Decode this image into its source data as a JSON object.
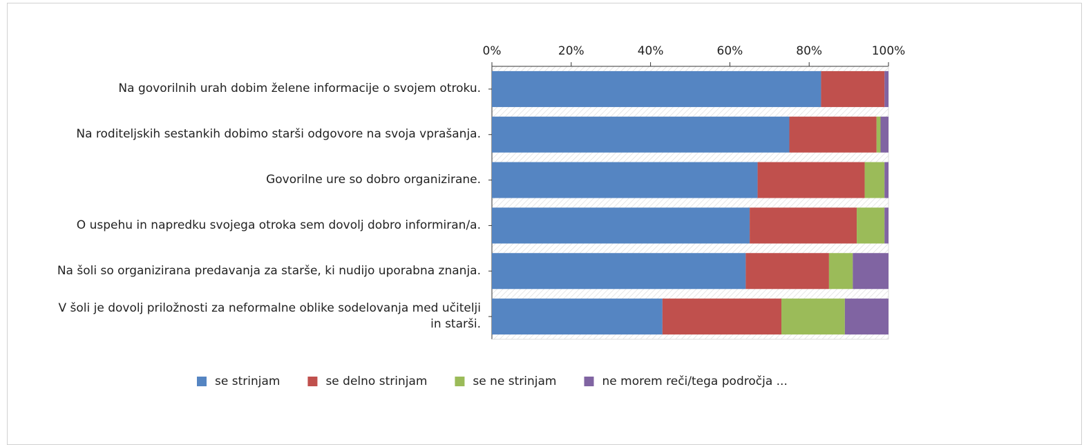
{
  "chart_data": {
    "type": "stacked-bar-horizontal",
    "categories": [
      "Na govorilnih urah dobim želene informacije o svojem otroku.",
      "Na roditeljskih sestankih dobimo starši odgovore na svoja vprašanja.",
      "Govorilne ure so dobro organizirane.",
      "O uspehu in napredku svojega otroka sem dovolj dobro informiran/a.",
      "Na šoli so organizirana predavanja za starše, ki nudijo uporabna znanja.",
      "V šoli je dovolj priložnosti za neformalne oblike sodelovanja med učitelji in starši."
    ],
    "series": [
      {
        "name": "se strinjam",
        "color": "#5585c2",
        "values": [
          83,
          75,
          67,
          65,
          64,
          43
        ]
      },
      {
        "name": "se delno strinjam",
        "color": "#c0504d",
        "values": [
          16,
          22,
          27,
          27,
          21,
          30
        ]
      },
      {
        "name": "se ne strinjam",
        "color": "#9bbb59",
        "values": [
          0,
          1,
          5,
          7,
          6,
          16
        ]
      },
      {
        "name": "ne morem reči/tega področja ...",
        "color": "#8064a2",
        "values": [
          1,
          2,
          1,
          1,
          9,
          11
        ]
      }
    ],
    "xlim": [
      0,
      100
    ],
    "xticks": [
      {
        "value": 0,
        "label": "0%"
      },
      {
        "value": 20,
        "label": "20%"
      },
      {
        "value": 40,
        "label": "40%"
      },
      {
        "value": 60,
        "label": "60%"
      },
      {
        "value": 80,
        "label": "80%"
      },
      {
        "value": 100,
        "label": "100%"
      }
    ],
    "legend": "bottom"
  }
}
